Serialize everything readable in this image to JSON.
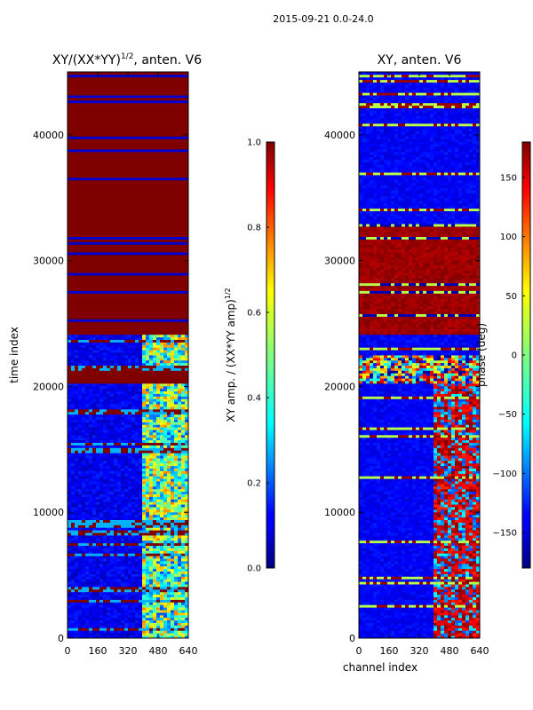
{
  "suptitle": "2015-09-21 0.0-24.0",
  "chart_data": [
    {
      "type": "heatmap",
      "title": "XY/(XX*YY)^(1/2), anten. V6",
      "title_main": "XY/(XX*YY)",
      "title_exp": "1/2",
      "title_tail": ", anten. V6",
      "xlabel": "",
      "ylabel": "time index",
      "xlim": [
        0,
        640
      ],
      "ylim": [
        0,
        45000
      ],
      "xticks": [
        0,
        160,
        320,
        480,
        640
      ],
      "yticks": [
        0,
        10000,
        20000,
        30000,
        40000
      ],
      "colorbar": {
        "label_main": "XY amp. / (XX*YY amp)",
        "label_exp": "1/2",
        "range": [
          0.0,
          1.0
        ],
        "ticks": [
          0.0,
          0.2,
          0.4,
          0.6,
          0.8,
          1.0
        ],
        "tick_labels": [
          "0.0",
          "0.2",
          "0.4",
          "0.6",
          "0.8",
          "1.0"
        ]
      },
      "regions": [
        {
          "y0": 0,
          "y1": 20300,
          "value": 0.1,
          "note": "mostly low amplitude, higher-value stripes at channels ~400-640"
        },
        {
          "y0": 20300,
          "y1": 21200,
          "value": 1.0
        },
        {
          "y0": 21200,
          "y1": 24200,
          "value": 0.12
        },
        {
          "y0": 24200,
          "y1": 45000,
          "value": 1.0,
          "note": "saturated with low-value gaps near 28700, 35000-37000, 41000-45000"
        }
      ]
    },
    {
      "type": "heatmap",
      "title": "XY, anten. V6",
      "xlabel": "channel index",
      "ylabel": "",
      "xlim": [
        0,
        640
      ],
      "ylim": [
        0,
        45000
      ],
      "xticks": [
        0,
        160,
        320,
        480,
        640
      ],
      "yticks": [
        0,
        10000,
        20000,
        30000,
        40000
      ],
      "colorbar": {
        "label": "phase (deg)",
        "range": [
          -180,
          180
        ],
        "ticks": [
          -150,
          -100,
          -50,
          0,
          50,
          100,
          150
        ],
        "tick_labels": [
          "−150",
          "−100",
          "−50",
          "0",
          "50",
          "100",
          "150"
        ]
      },
      "regions": [
        {
          "y0": 0,
          "y1": 20300,
          "value": -140,
          "note": "blue phase with warm values around channels 400-640"
        },
        {
          "y0": 20300,
          "y1": 22500,
          "value": -10,
          "note": "mixed phase"
        },
        {
          "y0": 22500,
          "y1": 24200,
          "value": -140
        },
        {
          "y0": 24200,
          "y1": 33000,
          "value": 170
        },
        {
          "y0": 33000,
          "y1": 45000,
          "value": -160,
          "note": "blue with cyan and red stripes"
        }
      ]
    }
  ]
}
